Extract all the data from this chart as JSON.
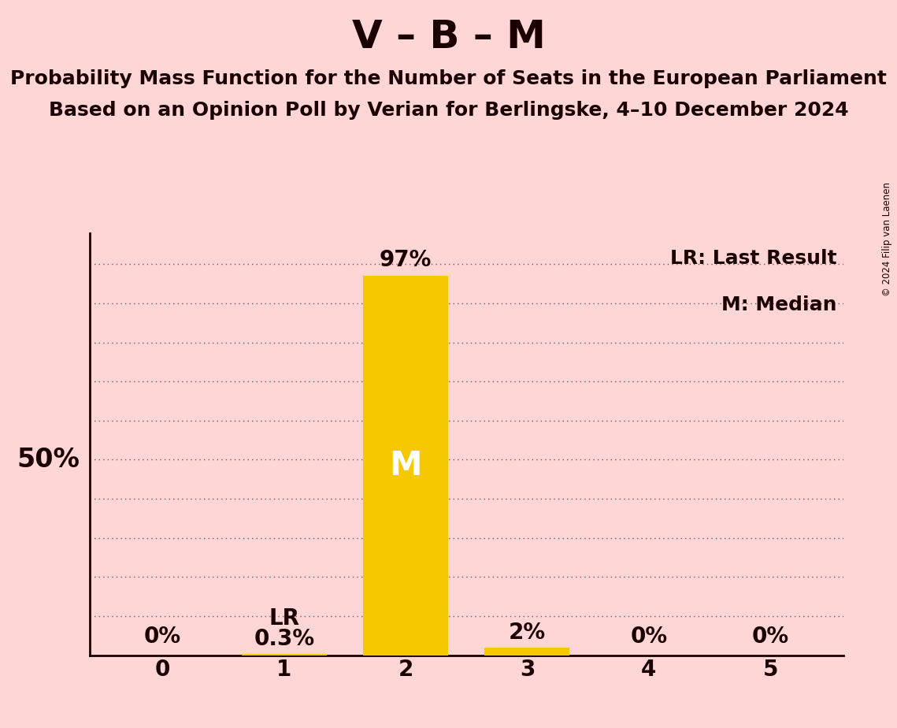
{
  "title": "V – B – M",
  "subtitle1": "Probability Mass Function for the Number of Seats in the European Parliament",
  "subtitle2": "Based on an Opinion Poll by Verian for Berlingske, 4–10 December 2024",
  "copyright": "© 2024 Filip van Laenen",
  "categories": [
    0,
    1,
    2,
    3,
    4,
    5
  ],
  "values": [
    0.0,
    0.003,
    0.97,
    0.02,
    0.0,
    0.0
  ],
  "bar_labels": [
    "0%",
    "0.3%",
    "97%",
    "2%",
    "0%",
    "0%"
  ],
  "bar_color": "#F5C800",
  "background_color": "#FFD6D6",
  "text_color": "#1a0000",
  "median_seat": 2,
  "last_result_seat": 1,
  "median_label": "M",
  "lr_label": "LR",
  "legend_lr": "LR: Last Result",
  "legend_m": "M: Median",
  "ylim": [
    0,
    1.08
  ],
  "yticks": [
    0.0,
    0.1,
    0.2,
    0.3,
    0.4,
    0.5,
    0.6,
    0.7,
    0.8,
    0.9,
    1.0
  ],
  "ylabel_50": "50%",
  "title_fontsize": 36,
  "subtitle_fontsize": 18,
  "tick_fontsize": 20,
  "bar_label_fontsize": 20,
  "inside_label_fontsize": 30,
  "legend_fontsize": 18,
  "lr_label_fontsize": 20
}
